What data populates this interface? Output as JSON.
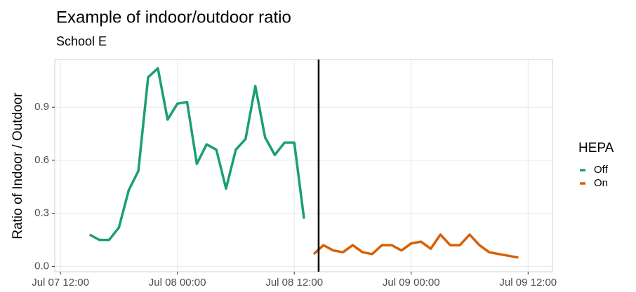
{
  "chart_data": {
    "type": "line",
    "title": "Example of indoor/outdoor ratio",
    "subtitle": "School E",
    "y_label": "Ratio of Indoor / Outdoor",
    "legend_title": "HEPA",
    "legend_position": "right",
    "grid": true,
    "xlim": [
      "Jul 07 11:25",
      "Jul 09 14:30"
    ],
    "xticks": [
      "Jul 07 12:00",
      "Jul 08 00:00",
      "Jul 08 12:00",
      "Jul 09 00:00",
      "Jul 09 12:00"
    ],
    "ylim": [
      -0.03,
      1.17
    ],
    "yticks": [
      {
        "value": 0,
        "label": "0.0"
      },
      0.3,
      0.6,
      0.9
    ],
    "vline_x": "Jul 08 14:30",
    "series": [
      {
        "name": "Off",
        "color": "#1b9e77",
        "x": [
          "Jul 07 15:00",
          "Jul 07 16:00",
          "Jul 07 17:00",
          "Jul 07 18:00",
          "Jul 07 19:00",
          "Jul 07 20:00",
          "Jul 07 21:00",
          "Jul 07 22:00",
          "Jul 07 23:00",
          "Jul 08 00:00",
          "Jul 08 01:00",
          "Jul 08 02:00",
          "Jul 08 03:00",
          "Jul 08 04:00",
          "Jul 08 05:00",
          "Jul 08 06:00",
          "Jul 08 07:00",
          "Jul 08 08:00",
          "Jul 08 09:00",
          "Jul 08 10:00",
          "Jul 08 11:00",
          "Jul 08 12:00",
          "Jul 08 13:00"
        ],
        "values": [
          0.18,
          0.15,
          0.15,
          0.22,
          0.43,
          0.54,
          1.07,
          1.12,
          0.83,
          0.92,
          0.93,
          0.58,
          0.69,
          0.66,
          0.44,
          0.66,
          0.72,
          1.02,
          0.73,
          0.63,
          0.7,
          0.7,
          0.27
        ]
      },
      {
        "name": "On",
        "color": "#d95f02",
        "x": [
          "Jul 08 14:00",
          "Jul 08 15:00",
          "Jul 08 16:00",
          "Jul 08 17:00",
          "Jul 08 18:00",
          "Jul 08 19:00",
          "Jul 08 20:00",
          "Jul 08 21:00",
          "Jul 08 22:00",
          "Jul 08 23:00",
          "Jul 09 00:00",
          "Jul 09 01:00",
          "Jul 09 02:00",
          "Jul 09 03:00",
          "Jul 09 04:00",
          "Jul 09 05:00",
          "Jul 09 06:00",
          "Jul 09 07:00",
          "Jul 09 08:00",
          "Jul 09 09:00",
          "Jul 09 10:00",
          "Jul 09 11:00"
        ],
        "values": [
          0.07,
          0.12,
          0.09,
          0.08,
          0.12,
          0.08,
          0.07,
          0.12,
          0.12,
          0.09,
          0.13,
          0.14,
          0.1,
          0.18,
          0.12,
          0.12,
          0.18,
          0.12,
          0.08,
          0.07,
          0.06,
          0.05
        ]
      }
    ]
  }
}
